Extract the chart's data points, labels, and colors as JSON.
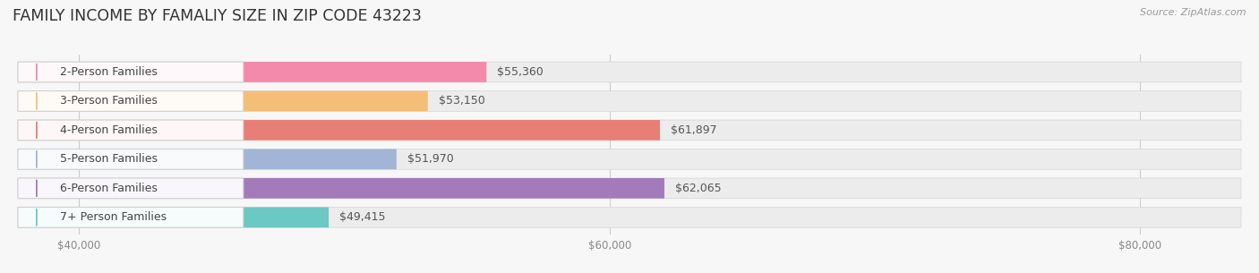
{
  "title": "FAMILY INCOME BY FAMALIY SIZE IN ZIP CODE 43223",
  "source": "Source: ZipAtlas.com",
  "categories": [
    "2-Person Families",
    "3-Person Families",
    "4-Person Families",
    "5-Person Families",
    "6-Person Families",
    "7+ Person Families"
  ],
  "values": [
    55360,
    53150,
    61897,
    51970,
    62065,
    49415
  ],
  "bar_colors": [
    "#F47FA4",
    "#F6B96B",
    "#E8736A",
    "#9BAFD4",
    "#9B6FB5",
    "#5EC4BE"
  ],
  "value_labels": [
    "$55,360",
    "$53,150",
    "$61,897",
    "$51,970",
    "$62,065",
    "$49,415"
  ],
  "xlim_min": 37500,
  "xlim_max": 84000,
  "xticks": [
    40000,
    60000,
    80000
  ],
  "xtick_labels": [
    "$40,000",
    "$60,000",
    "$80,000"
  ],
  "background_color": "#f7f7f7",
  "bar_background_color": "#ececec",
  "title_fontsize": 12.5,
  "bar_height": 0.7,
  "label_fontsize": 9,
  "value_fontsize": 9
}
